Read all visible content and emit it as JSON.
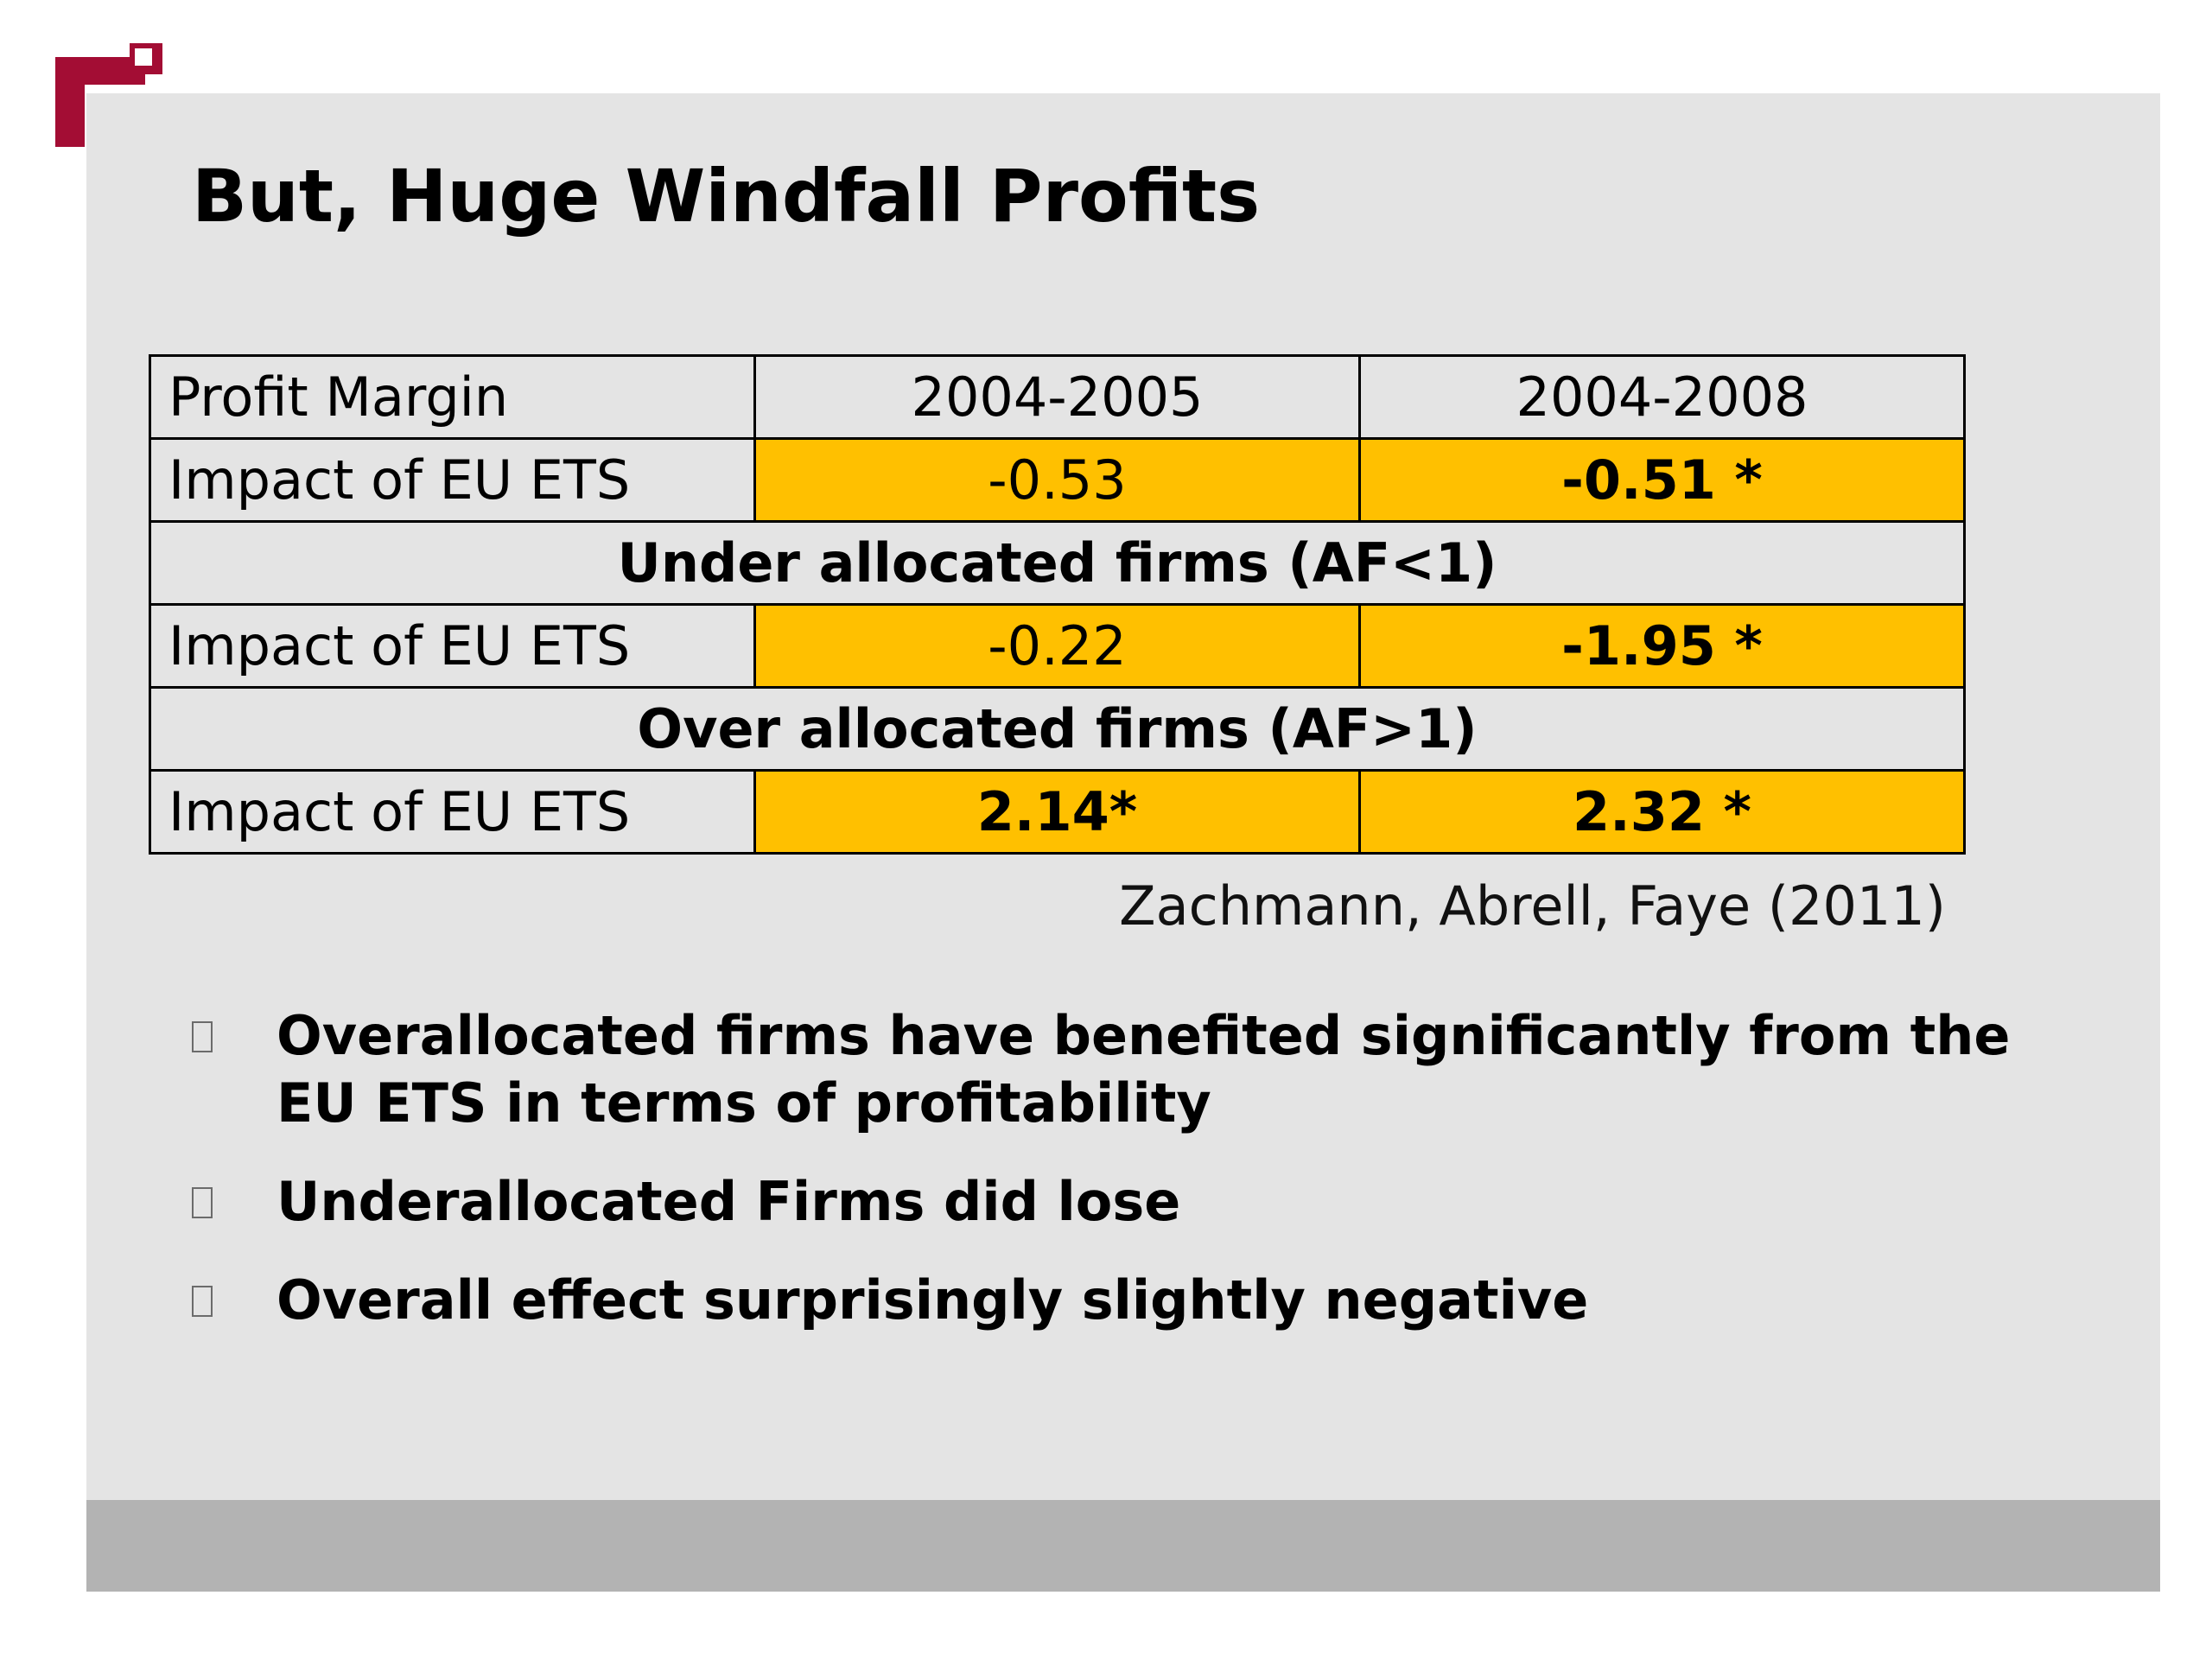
{
  "slide": {
    "title": "But, Huge Windfall Profits",
    "colors": {
      "panel_background": "#e4e4e4",
      "footer_bar": "#b3b3b3",
      "highlight_cell": "#ffc000",
      "logo": "#a30d34"
    },
    "logo_icon": "brand-logo-icon"
  },
  "table": {
    "header": {
      "label": "Profit Margin",
      "col1": "2004-2005",
      "col2": "2004-2008"
    },
    "row_all": {
      "label": "Impact of EU ETS",
      "col1": "-0.53",
      "col2": "-0.51 *"
    },
    "group_under": "Under allocated firms (AF<1)",
    "row_under": {
      "label": "Impact of EU ETS",
      "col1": "-0.22",
      "col2": "-1.95 *"
    },
    "group_over": "Over allocated firms (AF>1)",
    "row_over": {
      "label": "Impact of EU ETS",
      "col1": "2.14*",
      "col2": "2.32 *"
    }
  },
  "source": "Zachmann, Abrell, Faye (2011)",
  "bullets": [
    "Overallocated firms have benefited significantly from the EU ETS in terms of profitability",
    "Underallocated Firms did lose",
    "Overall effect surprisingly slightly negative"
  ]
}
